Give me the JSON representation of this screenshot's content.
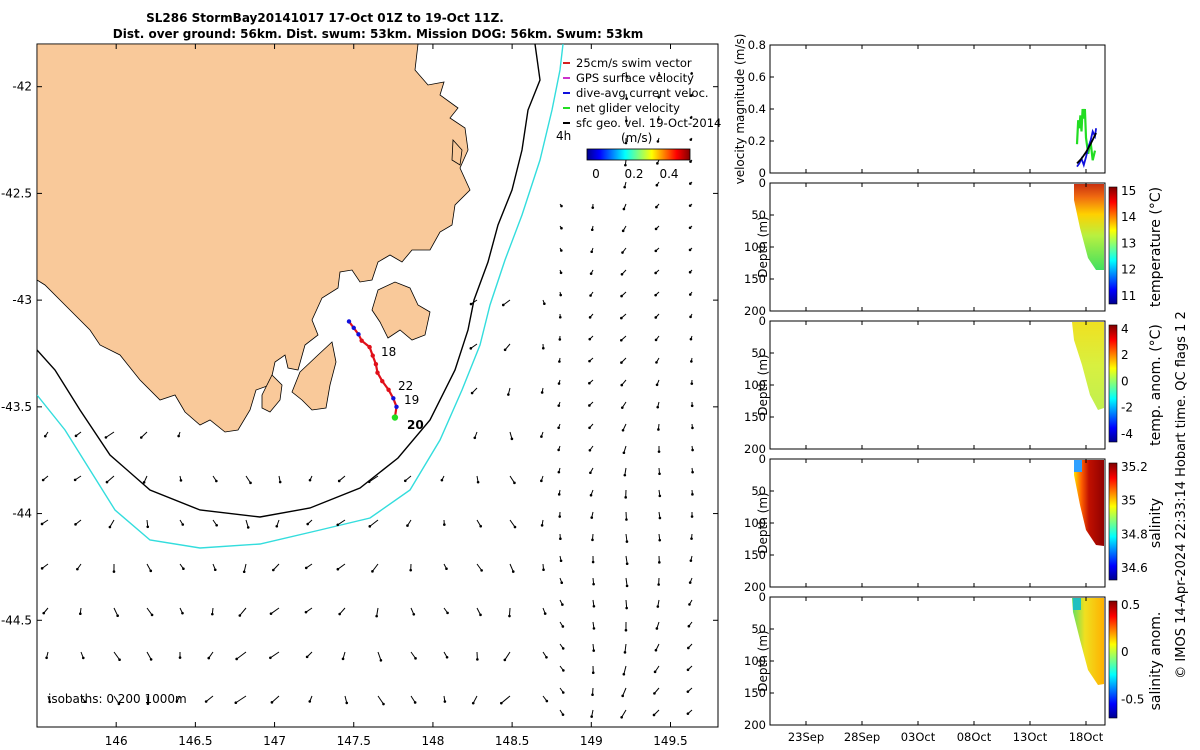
{
  "title": {
    "line1": "SL286 StormBay20141017 17-Oct 01Z to 19-Oct 11Z.",
    "line2": "Dist. over ground: 56km. Dist. swum: 53km. Mission DOG: 56km. Swum: 53km"
  },
  "colors": {
    "land": "#f9c99a",
    "isobath200": "#000000",
    "isobath1000": "#33dddd",
    "track": "#e0101a",
    "swim_vector": "#d42020",
    "gps_vel": "#cc33cc",
    "dive_avg": "#1010dd",
    "net_glider": "#22dd22",
    "sfc_geo": "#000000"
  },
  "map": {
    "legend": [
      {
        "label": "25cm/s swim vector",
        "color": "#d42020"
      },
      {
        "label": "GPS surface velocity",
        "color": "#cc33cc"
      },
      {
        "label": "dive-avg current veloc.",
        "color": "#1010dd"
      },
      {
        "label": "net glider velocity",
        "color": "#22dd22"
      },
      {
        "label": "sfc geo. vel. 19-Oct-2014",
        "color": "#000000"
      }
    ],
    "colorbar": {
      "label": "(m/s)",
      "ticks": [
        "0",
        "0.2",
        "0.4"
      ],
      "range": [
        0,
        0.5
      ]
    },
    "lead_label": "4h",
    "isobath_label": "isobaths: 0   200  1000m",
    "day_labels": [
      "18",
      "22",
      "19",
      "20"
    ]
  },
  "chart_data": [
    {
      "type": "map",
      "xlim": [
        145.5,
        149.8
      ],
      "ylim": [
        -45,
        -41.8
      ],
      "x_ticks": [
        "146",
        "146.5",
        "147",
        "147.5",
        "148",
        "148.5",
        "149",
        "149.5"
      ],
      "y_ticks": [
        "-42",
        "-42.5",
        "-43",
        "-43.5",
        "-44",
        "-44.5"
      ],
      "track": [
        [
          147.47,
          -43.1
        ],
        [
          147.5,
          -43.13
        ],
        [
          147.53,
          -43.16
        ],
        [
          147.55,
          -43.19
        ],
        [
          147.6,
          -43.22
        ],
        [
          147.62,
          -43.26
        ],
        [
          147.64,
          -43.3
        ],
        [
          147.65,
          -43.34
        ],
        [
          147.68,
          -43.38
        ],
        [
          147.72,
          -43.42
        ],
        [
          147.75,
          -43.46
        ],
        [
          147.77,
          -43.5
        ],
        [
          147.76,
          -43.55
        ]
      ]
    },
    {
      "type": "line",
      "ylabel": "velocity magnitude (m/s)",
      "ylim": [
        0,
        0.8
      ],
      "y_ticks": [
        "0",
        "0.2",
        "0.4",
        "0.6",
        "0.8"
      ],
      "x_ticks": [
        "23Sep",
        "28Sep",
        "03Oct",
        "08Oct",
        "13Oct",
        "18Oct"
      ],
      "series": [
        {
          "color": "#22dd22",
          "values": [
            [
              17.2,
              0.18
            ],
            [
              17.3,
              0.33
            ],
            [
              17.4,
              0.28
            ],
            [
              17.5,
              0.36
            ],
            [
              17.6,
              0.26
            ],
            [
              17.7,
              0.4
            ],
            [
              17.8,
              0.34
            ],
            [
              17.9,
              0.4
            ],
            [
              18.0,
              0.22
            ],
            [
              18.2,
              0.12
            ],
            [
              18.4,
              0.2
            ],
            [
              18.6,
              0.08
            ],
            [
              18.8,
              0.14
            ]
          ]
        },
        {
          "color": "#1010dd",
          "values": [
            [
              17.2,
              0.04
            ],
            [
              17.4,
              0.06
            ],
            [
              17.6,
              0.09
            ],
            [
              17.8,
              0.05
            ],
            [
              18.0,
              0.1
            ],
            [
              18.2,
              0.16
            ],
            [
              18.4,
              0.2
            ],
            [
              18.6,
              0.26
            ],
            [
              18.8,
              0.23
            ],
            [
              18.9,
              0.28
            ]
          ]
        },
        {
          "color": "#000000",
          "values": [
            [
              17.2,
              0.06
            ],
            [
              17.6,
              0.09
            ],
            [
              18.0,
              0.13
            ],
            [
              18.4,
              0.18
            ],
            [
              18.9,
              0.25
            ]
          ]
        }
      ]
    },
    {
      "type": "heatmap",
      "ylabel": "Depth (m)",
      "clabel": "temperature (°C)",
      "ylim": [
        200,
        0
      ],
      "y_ticks": [
        "0",
        "50",
        "100",
        "150",
        "200"
      ],
      "c_ticks": [
        "15",
        "14",
        "13",
        "12",
        "11"
      ]
    },
    {
      "type": "heatmap",
      "ylabel": "Depth (m)",
      "clabel": "temp. anom. (°C)",
      "ylim": [
        200,
        0
      ],
      "y_ticks": [
        "0",
        "50",
        "100",
        "150",
        "200"
      ],
      "c_ticks": [
        "4",
        "2",
        "0",
        "-2",
        "-4"
      ]
    },
    {
      "type": "heatmap",
      "ylabel": "Depth (m)",
      "clabel": "salinity",
      "ylim": [
        200,
        0
      ],
      "y_ticks": [
        "0",
        "50",
        "100",
        "150",
        "200"
      ],
      "c_ticks": [
        "35.2",
        "35",
        "34.8",
        "34.6"
      ]
    },
    {
      "type": "heatmap",
      "ylabel": "Depth (m)",
      "clabel": "salinity anom.",
      "ylim": [
        200,
        0
      ],
      "y_ticks": [
        "0",
        "50",
        "100",
        "150",
        "200"
      ],
      "c_ticks": [
        "0.5",
        "0",
        "-0.5"
      ]
    }
  ],
  "footer_note": "© IMOS 14-Apr-2024 22:33:14 Hobart time. QC flags 1  2"
}
